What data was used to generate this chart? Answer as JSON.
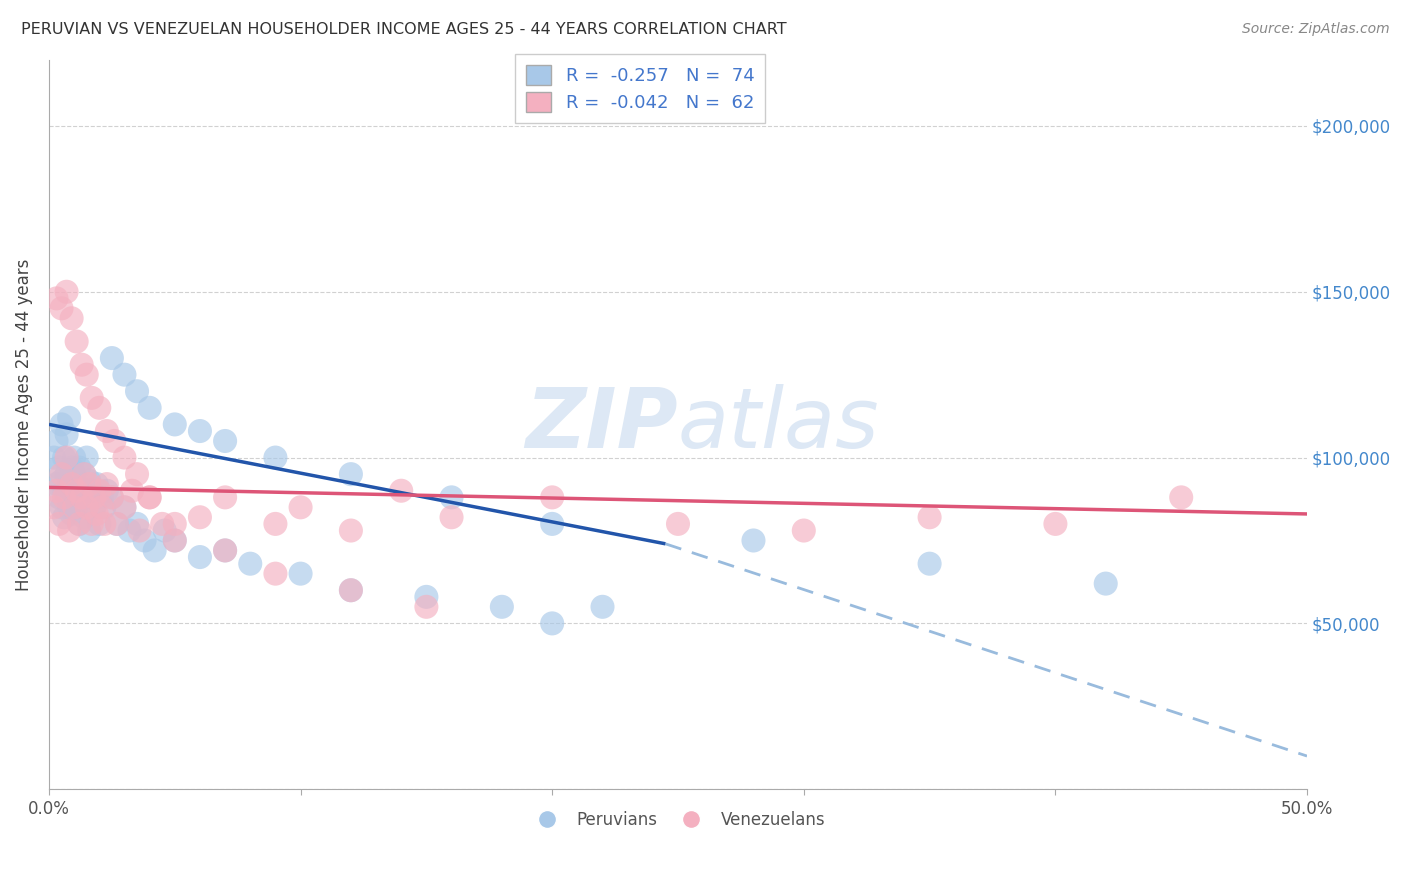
{
  "title": "PERUVIAN VS VENEZUELAN HOUSEHOLDER INCOME AGES 25 - 44 YEARS CORRELATION CHART",
  "source": "Source: ZipAtlas.com",
  "ylabel": "Householder Income Ages 25 - 44 years",
  "xlim": [
    0.0,
    0.5
  ],
  "ylim": [
    0,
    220000
  ],
  "yticks": [
    0,
    50000,
    100000,
    150000,
    200000
  ],
  "xticks": [
    0.0,
    0.1,
    0.2,
    0.3,
    0.4,
    0.5
  ],
  "legend_R1": "-0.257",
  "legend_N1": "74",
  "legend_R2": "-0.042",
  "legend_N2": "62",
  "blue_color": "#a8c8e8",
  "pink_color": "#f4b0c0",
  "regression_blue": "#2255aa",
  "regression_pink": "#dd5577",
  "dashed_color": "#99bbdd",
  "watermark_color": "#dde8f5",
  "blue_line_x": [
    0.0,
    0.245
  ],
  "blue_line_y": [
    110000,
    74000
  ],
  "dashed_line_x": [
    0.245,
    0.5
  ],
  "dashed_line_y": [
    74000,
    10000
  ],
  "pink_line_x": [
    0.0,
    0.5
  ],
  "pink_line_y": [
    91000,
    83000
  ],
  "blue_scatter_x": [
    0.002,
    0.003,
    0.003,
    0.004,
    0.004,
    0.005,
    0.005,
    0.005,
    0.006,
    0.006,
    0.006,
    0.007,
    0.007,
    0.007,
    0.008,
    0.008,
    0.008,
    0.009,
    0.009,
    0.009,
    0.01,
    0.01,
    0.01,
    0.011,
    0.011,
    0.012,
    0.012,
    0.013,
    0.013,
    0.014,
    0.014,
    0.015,
    0.015,
    0.016,
    0.016,
    0.017,
    0.018,
    0.019,
    0.02,
    0.021,
    0.022,
    0.023,
    0.025,
    0.027,
    0.03,
    0.032,
    0.035,
    0.038,
    0.042,
    0.046,
    0.05,
    0.06,
    0.07,
    0.08,
    0.1,
    0.12,
    0.15,
    0.18,
    0.2,
    0.22,
    0.025,
    0.03,
    0.035,
    0.04,
    0.05,
    0.06,
    0.07,
    0.09,
    0.12,
    0.16,
    0.2,
    0.28,
    0.35,
    0.42
  ],
  "blue_scatter_y": [
    100000,
    92000,
    105000,
    88000,
    97000,
    93000,
    85000,
    110000,
    90000,
    100000,
    82000,
    95000,
    88000,
    107000,
    93000,
    85000,
    112000,
    90000,
    97000,
    83000,
    100000,
    88000,
    95000,
    92000,
    85000,
    97000,
    80000,
    90000,
    88000,
    95000,
    82000,
    100000,
    88000,
    93000,
    78000,
    90000,
    85000,
    92000,
    80000,
    88000,
    85000,
    90000,
    88000,
    80000,
    85000,
    78000,
    80000,
    75000,
    72000,
    78000,
    75000,
    70000,
    72000,
    68000,
    65000,
    60000,
    58000,
    55000,
    50000,
    55000,
    130000,
    125000,
    120000,
    115000,
    110000,
    108000,
    105000,
    100000,
    95000,
    88000,
    80000,
    75000,
    68000,
    62000
  ],
  "pink_scatter_x": [
    0.002,
    0.003,
    0.004,
    0.005,
    0.006,
    0.007,
    0.008,
    0.009,
    0.01,
    0.011,
    0.012,
    0.013,
    0.014,
    0.015,
    0.016,
    0.017,
    0.018,
    0.019,
    0.02,
    0.021,
    0.022,
    0.023,
    0.025,
    0.027,
    0.03,
    0.033,
    0.036,
    0.04,
    0.045,
    0.05,
    0.06,
    0.07,
    0.09,
    0.1,
    0.12,
    0.14,
    0.16,
    0.2,
    0.25,
    0.3,
    0.35,
    0.4,
    0.45,
    0.003,
    0.005,
    0.007,
    0.009,
    0.011,
    0.013,
    0.015,
    0.017,
    0.02,
    0.023,
    0.026,
    0.03,
    0.035,
    0.04,
    0.05,
    0.07,
    0.09,
    0.12,
    0.15
  ],
  "pink_scatter_y": [
    85000,
    90000,
    80000,
    95000,
    88000,
    100000,
    78000,
    92000,
    85000,
    90000,
    80000,
    88000,
    95000,
    85000,
    92000,
    80000,
    88000,
    83000,
    90000,
    85000,
    80000,
    92000,
    88000,
    80000,
    85000,
    90000,
    78000,
    88000,
    80000,
    75000,
    82000,
    88000,
    80000,
    85000,
    78000,
    90000,
    82000,
    88000,
    80000,
    78000,
    82000,
    80000,
    88000,
    148000,
    145000,
    150000,
    142000,
    135000,
    128000,
    125000,
    118000,
    115000,
    108000,
    105000,
    100000,
    95000,
    88000,
    80000,
    72000,
    65000,
    60000,
    55000
  ]
}
